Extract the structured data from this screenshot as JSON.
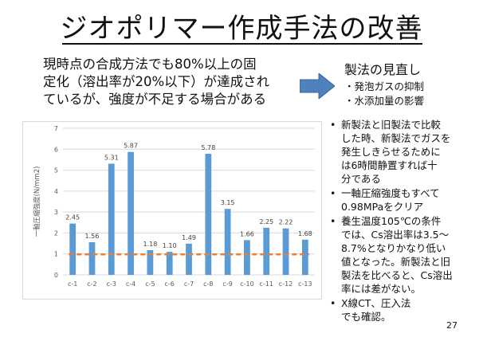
{
  "title": "ジオポリマー作成手法の改善",
  "summary": {
    "lines": [
      "現時点の合成方法でも80%以上の固",
      "定化（溶出率が20%以下）が達成され",
      "ているが、強度が不足する場合がある"
    ]
  },
  "review": {
    "heading": "製法の見直し",
    "items": [
      "・発泡ガスの抑制",
      "・水添加量の影響"
    ]
  },
  "chart_data": {
    "type": "bar",
    "ylabel": "一軸圧縮強度(N/mm2)",
    "ylim": [
      0,
      7
    ],
    "yticks": [
      0,
      1,
      2,
      3,
      4,
      5,
      6,
      7
    ],
    "categories": [
      "c-1",
      "c-2",
      "c-3",
      "c-4",
      "c-5",
      "c-6",
      "c-7",
      "c-8",
      "c-9",
      "c-10",
      "c-11",
      "c-12",
      "c-13"
    ],
    "values": [
      2.45,
      1.56,
      5.31,
      5.87,
      1.18,
      1.1,
      1.49,
      5.78,
      3.15,
      1.66,
      2.25,
      2.22,
      1.68
    ],
    "data_labels": [
      "2.45",
      "1.56",
      "5.31",
      "5.87",
      "1.18",
      "1.10",
      "1.49",
      "5.78",
      "3.15",
      "1.66",
      "2.25",
      "2.22",
      "1.68"
    ],
    "reference_line": 0.98,
    "bar_color": "#5b9bd5",
    "reference_color": "#ed7d31",
    "grid": true
  },
  "bullets": [
    [
      "新製法と旧製法で比較",
      "した時、新製法でガスを",
      "発生しきらせるために",
      "は6時間静置すれば十",
      "分である"
    ],
    [
      "一軸圧縮強度もすべて",
      "0.98MPaをクリア"
    ],
    [
      "養生温度105℃の条件",
      "では、Cs溶出率は3.5～",
      "8.7%となりかなり低い",
      "値となった。新製法と旧",
      "製法を比べると、Cs溶出",
      "率には差がない。"
    ],
    [
      "X線CT、圧入法",
      "でも確認。"
    ]
  ],
  "page_number": "27"
}
